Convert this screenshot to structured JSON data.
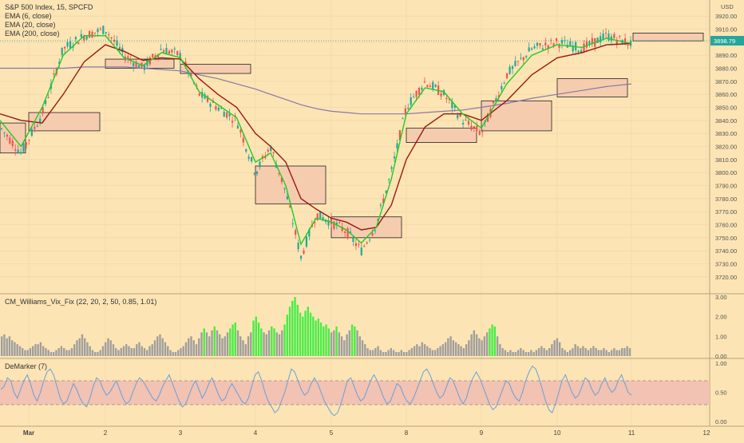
{
  "legend": {
    "symbol": "S&P 500 Index, 15, SPCFD",
    "ema_fast": "EMA (6, close)",
    "ema_mid": "EMA (20, close)",
    "ema_slow": "EMA (200, close)"
  },
  "currency": "USD",
  "last_price": "3898.79",
  "colors": {
    "background": "#fce4b4",
    "grid": "#efd8aa",
    "candle_up": "#26a69a",
    "candle_down": "#ef5350",
    "ema_fast": "#22cc22",
    "ema_mid": "#9a1a12",
    "ema_slow": "#8878a8",
    "box_fill": "#f4c8ae",
    "vix_normal": "#9e9e9e",
    "vix_high": "#44ee44",
    "demarker_line": "#6aa0d8",
    "demarker_band": "#f2c2b2",
    "last_price_badge": "#26a69a"
  },
  "price_axis_labels": [
    "3920.00",
    "3910.00",
    "3900.00",
    "3890.00",
    "3880.00",
    "3870.00",
    "3860.00",
    "3850.00",
    "3840.00",
    "3830.00",
    "3820.00",
    "3810.00",
    "3800.00",
    "3790.00",
    "3780.00",
    "3770.00",
    "3760.00",
    "3750.00",
    "3740.00",
    "3730.00",
    "3720.00"
  ],
  "time_axis_labels": [
    "Mar",
    "2",
    "3",
    "4",
    "5",
    "8",
    "9",
    "10",
    "11",
    "12"
  ],
  "vix_panel": {
    "title": "CM_Williams_Vix_Fix (22, 20, 2, 50, 0.85, 1.01)",
    "axis_labels": [
      "3.00",
      "2.00",
      "1.00",
      "0.00"
    ]
  },
  "demarker_panel": {
    "title": "DeMarker (7)",
    "axis_labels": [
      "1.00",
      "0.50",
      "0.00"
    ],
    "upper_band": 0.7,
    "lower_band": 0.3
  },
  "chart_data": [
    {
      "type": "candlestick",
      "title": "S&P 500 Index, 15, SPCFD",
      "x_categories": [
        "Mar",
        "2",
        "3",
        "4",
        "5",
        "8",
        "9",
        "10",
        "11",
        "12"
      ],
      "ylim": [
        3715,
        3925
      ],
      "y_unit": "USD",
      "last_price": 3898.79,
      "price_path": [
        {
          "x": "Mar",
          "price": 3835
        },
        {
          "x": "Mar",
          "price": 3815
        },
        {
          "x": "Mar",
          "price": 3845
        },
        {
          "x": "Mar",
          "price": 3895
        },
        {
          "x": "Mar",
          "price": 3905
        },
        {
          "x": "2",
          "price": 3910
        },
        {
          "x": "2",
          "price": 3890
        },
        {
          "x": "2",
          "price": 3880
        },
        {
          "x": "2",
          "price": 3895
        },
        {
          "x": "3",
          "price": 3890
        },
        {
          "x": "3",
          "price": 3860
        },
        {
          "x": "3",
          "price": 3850
        },
        {
          "x": "3",
          "price": 3840
        },
        {
          "x": "4",
          "price": 3800
        },
        {
          "x": "4",
          "price": 3820
        },
        {
          "x": "4",
          "price": 3785
        },
        {
          "x": "4",
          "price": 3735
        },
        {
          "x": "4",
          "price": 3768
        },
        {
          "x": "5",
          "price": 3762
        },
        {
          "x": "5",
          "price": 3755
        },
        {
          "x": "5",
          "price": 3740
        },
        {
          "x": "5",
          "price": 3760
        },
        {
          "x": "5",
          "price": 3800
        },
        {
          "x": "8",
          "price": 3850
        },
        {
          "x": "8",
          "price": 3870
        },
        {
          "x": "8",
          "price": 3860
        },
        {
          "x": "8",
          "price": 3840
        },
        {
          "x": "9",
          "price": 3830
        },
        {
          "x": "9",
          "price": 3875
        },
        {
          "x": "9",
          "price": 3895
        },
        {
          "x": "10",
          "price": 3900
        },
        {
          "x": "10",
          "price": 3895
        },
        {
          "x": "10",
          "price": 3905
        },
        {
          "x": "11",
          "price": 3898.79
        }
      ],
      "ema_6": [
        3840,
        3820,
        3850,
        3890,
        3905,
        3905,
        3888,
        3882,
        3892,
        3888,
        3862,
        3852,
        3842,
        3808,
        3815,
        3790,
        3745,
        3765,
        3762,
        3756,
        3746,
        3758,
        3795,
        3845,
        3865,
        3862,
        3845,
        3834,
        3868,
        3890,
        3898,
        3896,
        3903,
        3899
      ],
      "ema_20": [
        3845,
        3840,
        3838,
        3860,
        3885,
        3898,
        3893,
        3886,
        3888,
        3887,
        3872,
        3860,
        3850,
        3830,
        3820,
        3808,
        3780,
        3772,
        3765,
        3762,
        3756,
        3758,
        3775,
        3810,
        3835,
        3845,
        3845,
        3840,
        3855,
        3875,
        3888,
        3892,
        3898,
        3899
      ],
      "ema_200": [
        3880,
        3880,
        3880,
        3880,
        3881,
        3881,
        3881,
        3880,
        3879,
        3878,
        3875,
        3872,
        3868,
        3864,
        3860,
        3856,
        3852,
        3849,
        3847,
        3846,
        3845,
        3845,
        3845,
        3845,
        3846,
        3847,
        3848,
        3850,
        3853,
        3857,
        3860,
        3863,
        3866,
        3868
      ],
      "boxes": [
        {
          "from": "Mar",
          "to": "Mar",
          "low": 3815,
          "high": 3838
        },
        {
          "from": "Mar",
          "to": "2",
          "low": 3832,
          "high": 3846
        },
        {
          "from": "2",
          "to": "3",
          "low": 3880,
          "high": 3887
        },
        {
          "from": "3",
          "to": "4",
          "low": 3876,
          "high": 3883
        },
        {
          "from": "4",
          "to": "5",
          "low": 3776,
          "high": 3805
        },
        {
          "from": "5",
          "to": "5",
          "low": 3750,
          "high": 3766
        },
        {
          "from": "8",
          "to": "9",
          "low": 3823,
          "high": 3834
        },
        {
          "from": "9",
          "to": "10",
          "low": 3832,
          "high": 3855
        },
        {
          "from": "10",
          "to": "11",
          "low": 3858,
          "high": 3872
        },
        {
          "from": "11",
          "to": "12",
          "low": 3901,
          "high": 3907
        }
      ]
    },
    {
      "type": "bar",
      "title": "CM_Williams_Vix_Fix (22, 20, 2, 50, 0.85, 1.01)",
      "ylim": [
        0,
        3
      ],
      "values": [
        1.0,
        1.1,
        0.9,
        1.0,
        0.8,
        0.7,
        0.6,
        0.5,
        0.4,
        0.3,
        0.3,
        0.4,
        0.5,
        0.6,
        0.6,
        0.7,
        0.5,
        0.4,
        0.3,
        0.2,
        0.2,
        0.3,
        0.4,
        0.5,
        0.4,
        0.3,
        0.3,
        0.4,
        0.6,
        0.8,
        0.9,
        1.1,
        0.9,
        0.7,
        0.5,
        0.3,
        0.2,
        0.2,
        0.3,
        0.5,
        0.7,
        0.9,
        0.8,
        0.6,
        0.4,
        0.3,
        0.4,
        0.5,
        0.6,
        0.5,
        0.4,
        0.4,
        0.6,
        0.7,
        0.5,
        0.4,
        0.3,
        0.5,
        0.6,
        0.8,
        1.0,
        1.1,
        0.9,
        0.7,
        0.5,
        0.3,
        0.2,
        0.2,
        0.3,
        0.4,
        0.5,
        0.7,
        0.9,
        1.0,
        0.8,
        0.6,
        0.9,
        1.2,
        1.4,
        1.2,
        1.0,
        1.3,
        1.5,
        1.3,
        1.1,
        0.9,
        1.0,
        1.2,
        1.4,
        1.6,
        1.7,
        1.3,
        1.0,
        0.8,
        0.6,
        1.0,
        1.2,
        1.8,
        2.0,
        1.7,
        1.4,
        1.2,
        1.1,
        1.3,
        1.5,
        1.4,
        1.2,
        1.1,
        1.3,
        1.6,
        2.1,
        2.5,
        2.8,
        3.0,
        2.6,
        2.2,
        2.0,
        2.3,
        2.5,
        2.2,
        2.0,
        1.8,
        1.9,
        1.7,
        1.5,
        1.6,
        1.4,
        1.2,
        1.3,
        1.5,
        1.2,
        1.0,
        0.8,
        1.1,
        1.3,
        1.6,
        1.5,
        1.3,
        1.0,
        0.8,
        0.6,
        0.4,
        0.3,
        0.3,
        0.4,
        0.5,
        0.3,
        0.2,
        0.2,
        0.3,
        0.4,
        0.3,
        0.2,
        0.2,
        0.3,
        0.2,
        0.2,
        0.3,
        0.4,
        0.5,
        0.6,
        0.5,
        0.7,
        0.6,
        0.5,
        0.4,
        0.3,
        0.3,
        0.4,
        0.5,
        0.6,
        0.7,
        0.9,
        1.0,
        0.8,
        0.7,
        0.6,
        0.5,
        0.4,
        0.6,
        0.8,
        1.1,
        1.3,
        1.1,
        0.9,
        0.8,
        1.0,
        1.2,
        1.4,
        1.6,
        1.5,
        1.0,
        0.6,
        0.4,
        0.3,
        0.2,
        0.3,
        0.2,
        0.2,
        0.3,
        0.4,
        0.3,
        0.2,
        0.2,
        0.3,
        0.2,
        0.3,
        0.4,
        0.5,
        0.4,
        0.3,
        0.4,
        0.6,
        0.8,
        0.9,
        0.7,
        0.4,
        0.3,
        0.2,
        0.3,
        0.4,
        0.6,
        0.5,
        0.4,
        0.5,
        0.4,
        0.3,
        0.4,
        0.5,
        0.4,
        0.3,
        0.3,
        0.4,
        0.3,
        0.2,
        0.3,
        0.4,
        0.3,
        0.3,
        0.4,
        0.4,
        0.5,
        0.4
      ],
      "highlight_threshold": 1.35
    },
    {
      "type": "line",
      "title": "DeMarker (7)",
      "ylim": [
        0,
        1
      ],
      "upper_band": 0.7,
      "lower_band": 0.3,
      "values": [
        0.55,
        0.6,
        0.75,
        0.7,
        0.5,
        0.4,
        0.55,
        0.7,
        0.8,
        0.65,
        0.45,
        0.35,
        0.5,
        0.7,
        0.85,
        0.9,
        0.8,
        0.6,
        0.4,
        0.3,
        0.35,
        0.5,
        0.65,
        0.55,
        0.4,
        0.3,
        0.25,
        0.4,
        0.6,
        0.75,
        0.7,
        0.55,
        0.45,
        0.5,
        0.6,
        0.7,
        0.55,
        0.4,
        0.3,
        0.35,
        0.5,
        0.65,
        0.75,
        0.7,
        0.6,
        0.5,
        0.4,
        0.35,
        0.45,
        0.6,
        0.7,
        0.8,
        0.65,
        0.5,
        0.35,
        0.25,
        0.3,
        0.45,
        0.6,
        0.7,
        0.55,
        0.4,
        0.5,
        0.65,
        0.75,
        0.6,
        0.45,
        0.35,
        0.4,
        0.55,
        0.65,
        0.55,
        0.45,
        0.35,
        0.3,
        0.4,
        0.6,
        0.8,
        0.85,
        0.7,
        0.5,
        0.35,
        0.25,
        0.15,
        0.2,
        0.35,
        0.5,
        0.7,
        0.9,
        0.85,
        0.7,
        0.55,
        0.45,
        0.5,
        0.65,
        0.75,
        0.65,
        0.5,
        0.35,
        0.25,
        0.15,
        0.1,
        0.15,
        0.3,
        0.5,
        0.7,
        0.75,
        0.6,
        0.45,
        0.35,
        0.4,
        0.55,
        0.7,
        0.8,
        0.7,
        0.55,
        0.4,
        0.3,
        0.35,
        0.5,
        0.65,
        0.6,
        0.45,
        0.35,
        0.3,
        0.4,
        0.55,
        0.7,
        0.85,
        0.9,
        0.8,
        0.65,
        0.5,
        0.4,
        0.45,
        0.6,
        0.75,
        0.7,
        0.55,
        0.4,
        0.3,
        0.4,
        0.6,
        0.75,
        0.85,
        0.75,
        0.6,
        0.45,
        0.3,
        0.2,
        0.25,
        0.4,
        0.55,
        0.7,
        0.65,
        0.5,
        0.4,
        0.35,
        0.5,
        0.7,
        0.85,
        0.95,
        0.9,
        0.75,
        0.55,
        0.35,
        0.2,
        0.15,
        0.3,
        0.5,
        0.7,
        0.8,
        0.65,
        0.5,
        0.4,
        0.45,
        0.6,
        0.75,
        0.7,
        0.55,
        0.45,
        0.5,
        0.65,
        0.75,
        0.6,
        0.5,
        0.55,
        0.7,
        0.8,
        0.65,
        0.5,
        0.45
      ]
    }
  ]
}
